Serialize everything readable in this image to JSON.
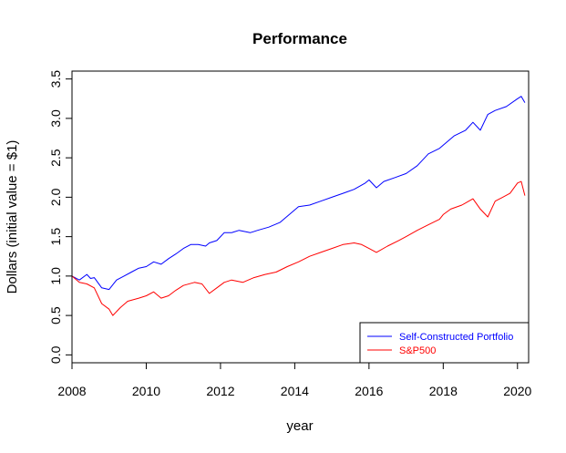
{
  "chart_data": {
    "type": "line",
    "title": "Performance",
    "xlabel": "year",
    "ylabel": "Dollars (initial value = $1)",
    "xlim": [
      2008,
      2020.3
    ],
    "ylim": [
      -0.1,
      3.6
    ],
    "x_ticks": [
      2008,
      2010,
      2012,
      2014,
      2016,
      2018,
      2020
    ],
    "y_ticks": [
      0.0,
      0.5,
      1.0,
      1.5,
      2.0,
      2.5,
      3.0,
      3.5
    ],
    "x_tick_labels": [
      "2008",
      "2010",
      "2012",
      "2014",
      "2016",
      "2018",
      "2020"
    ],
    "y_tick_labels": [
      "0.0",
      "0.5",
      "1.0",
      "1.5",
      "2.0",
      "2.5",
      "3.0",
      "3.5"
    ],
    "grid": false,
    "legend_position": "bottom-right",
    "series": [
      {
        "name": "Self-Constructed Portfolio",
        "color": "#0000FF",
        "x": [
          2008.0,
          2008.2,
          2008.4,
          2008.5,
          2008.6,
          2008.8,
          2009.0,
          2009.2,
          2009.4,
          2009.6,
          2009.8,
          2010.0,
          2010.2,
          2010.4,
          2010.6,
          2010.8,
          2011.0,
          2011.2,
          2011.4,
          2011.6,
          2011.7,
          2011.9,
          2012.1,
          2012.3,
          2012.5,
          2012.8,
          2013.0,
          2013.3,
          2013.6,
          2013.9,
          2014.1,
          2014.4,
          2014.7,
          2015.0,
          2015.3,
          2015.6,
          2015.9,
          2016.0,
          2016.2,
          2016.4,
          2016.7,
          2017.0,
          2017.3,
          2017.6,
          2017.9,
          2018.1,
          2018.3,
          2018.6,
          2018.8,
          2019.0,
          2019.2,
          2019.4,
          2019.7,
          2020.0,
          2020.1,
          2020.2
        ],
        "y": [
          1.0,
          0.95,
          1.02,
          0.97,
          0.98,
          0.85,
          0.83,
          0.95,
          1.0,
          1.05,
          1.1,
          1.12,
          1.18,
          1.15,
          1.22,
          1.28,
          1.35,
          1.4,
          1.4,
          1.38,
          1.42,
          1.45,
          1.55,
          1.55,
          1.58,
          1.55,
          1.58,
          1.62,
          1.68,
          1.8,
          1.88,
          1.9,
          1.95,
          2.0,
          2.05,
          2.1,
          2.18,
          2.22,
          2.12,
          2.2,
          2.25,
          2.3,
          2.4,
          2.55,
          2.62,
          2.7,
          2.78,
          2.85,
          2.95,
          2.85,
          3.05,
          3.1,
          3.15,
          3.25,
          3.28,
          3.2
        ]
      },
      {
        "name": "S&P500",
        "color": "#FF0000",
        "x": [
          2008.0,
          2008.2,
          2008.4,
          2008.6,
          2008.8,
          2009.0,
          2009.1,
          2009.3,
          2009.5,
          2009.8,
          2010.0,
          2010.2,
          2010.4,
          2010.6,
          2010.8,
          2011.0,
          2011.3,
          2011.5,
          2011.7,
          2011.9,
          2012.1,
          2012.3,
          2012.6,
          2012.9,
          2013.2,
          2013.5,
          2013.8,
          2014.1,
          2014.4,
          2014.7,
          2015.0,
          2015.3,
          2015.6,
          2015.8,
          2016.0,
          2016.2,
          2016.5,
          2016.8,
          2017.0,
          2017.3,
          2017.6,
          2017.9,
          2018.0,
          2018.2,
          2018.5,
          2018.8,
          2019.0,
          2019.2,
          2019.4,
          2019.6,
          2019.8,
          2020.0,
          2020.1,
          2020.2
        ],
        "y": [
          1.0,
          0.92,
          0.9,
          0.85,
          0.65,
          0.58,
          0.5,
          0.6,
          0.68,
          0.72,
          0.75,
          0.8,
          0.72,
          0.75,
          0.82,
          0.88,
          0.92,
          0.9,
          0.78,
          0.85,
          0.92,
          0.95,
          0.92,
          0.98,
          1.02,
          1.05,
          1.12,
          1.18,
          1.25,
          1.3,
          1.35,
          1.4,
          1.42,
          1.4,
          1.35,
          1.3,
          1.38,
          1.45,
          1.5,
          1.58,
          1.65,
          1.72,
          1.78,
          1.85,
          1.9,
          1.98,
          1.85,
          1.75,
          1.95,
          2.0,
          2.05,
          2.18,
          2.2,
          2.02
        ]
      }
    ]
  }
}
